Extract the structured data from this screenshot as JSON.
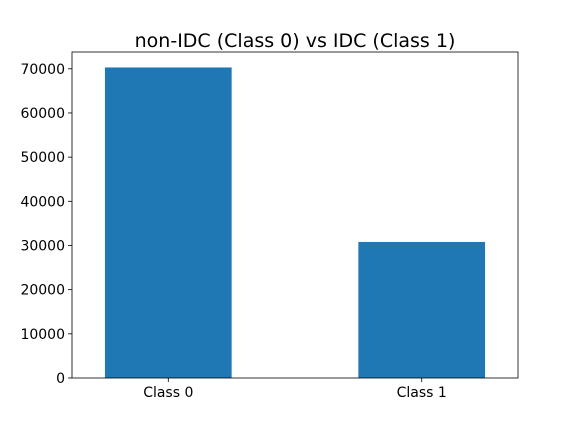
{
  "chart_data": {
    "type": "bar",
    "title": "non-IDC (Class 0) vs IDC (Class 1)",
    "xlabel": "",
    "ylabel": "",
    "categories": [
      "Class 0",
      "Class 1"
    ],
    "values": [
      70300,
      30800
    ],
    "ylim": [
      0,
      73800
    ],
    "yticks": [
      0,
      10000,
      20000,
      30000,
      40000,
      50000,
      60000,
      70000
    ],
    "ytick_labels": [
      "0",
      "10000",
      "20000",
      "30000",
      "40000",
      "50000",
      "60000",
      "70000"
    ],
    "bar_color": "#1f77b4",
    "grid": false,
    "legend": "none"
  }
}
